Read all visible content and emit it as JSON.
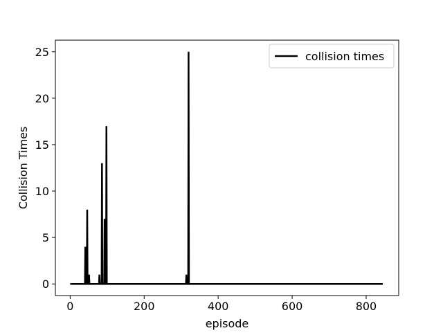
{
  "chart_data": {
    "type": "line",
    "xlabel": "episode",
    "ylabel": "Collision Times",
    "xlim": [
      -40,
      888
    ],
    "ylim": [
      -1.25,
      26.25
    ],
    "xticks": [
      0,
      200,
      400,
      600,
      800
    ],
    "yticks": [
      0,
      5,
      10,
      15,
      20,
      25
    ],
    "xtick_labels": [
      "0",
      "200",
      "400",
      "600",
      "800"
    ],
    "ytick_labels": [
      "0",
      "5",
      "10",
      "15",
      "20",
      "25"
    ],
    "legend_position": "top-right",
    "grid": false,
    "series": [
      {
        "name": "collision times",
        "color": "#000000",
        "points": [
          [
            0,
            0
          ],
          [
            40,
            0
          ],
          [
            41,
            4
          ],
          [
            42,
            0
          ],
          [
            45,
            0
          ],
          [
            46,
            8
          ],
          [
            47,
            0
          ],
          [
            50,
            0
          ],
          [
            51,
            1
          ],
          [
            52,
            0
          ],
          [
            78,
            0
          ],
          [
            79,
            1
          ],
          [
            80,
            0
          ],
          [
            85,
            0
          ],
          [
            86,
            13
          ],
          [
            87,
            0
          ],
          [
            92,
            0
          ],
          [
            93,
            7
          ],
          [
            94,
            0
          ],
          [
            97,
            0
          ],
          [
            98,
            17
          ],
          [
            99,
            0
          ],
          [
            313,
            0
          ],
          [
            314,
            1
          ],
          [
            315,
            0
          ],
          [
            319,
            0
          ],
          [
            320,
            25
          ],
          [
            321,
            0
          ],
          [
            845,
            0
          ]
        ]
      }
    ]
  }
}
